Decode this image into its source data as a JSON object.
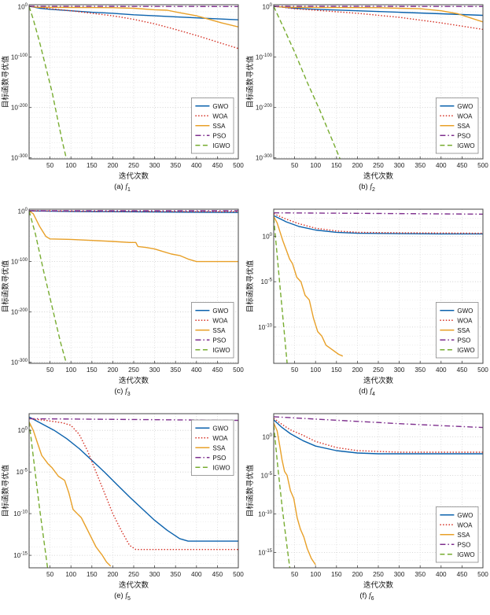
{
  "colors": {
    "GWO": "#0b62ad",
    "WOA": "#d63226",
    "SSA": "#e8a028",
    "PSO": "#7E2F8E",
    "IGWO": "#77AC30"
  },
  "chart_data": [
    {
      "id": "a",
      "type": "line",
      "caption": {
        "prefix": "(a)",
        "fname": "f",
        "fsub": "1"
      },
      "xlabel": "迭代次数",
      "ylabel": "目标函数寻优值",
      "xlim": [
        0,
        500
      ],
      "x_ticks": [
        50,
        100,
        150,
        200,
        250,
        300,
        350,
        400,
        450,
        500
      ],
      "y_scale": "log10",
      "ylim_exp": [
        4,
        -302
      ],
      "y_ticks_exp": [
        0,
        -100,
        -200,
        -300
      ],
      "y_minor_step_exp": 10,
      "legend_pos": "lower-right",
      "series": [
        {
          "name": "GWO",
          "color_key": "GWO",
          "dash": "solid",
          "x": [
            0,
            25,
            50,
            100,
            150,
            200,
            250,
            300,
            350,
            400,
            450,
            500
          ],
          "y_exp": [
            1,
            -3,
            -5,
            -8,
            -11,
            -13,
            -16,
            -18,
            -20,
            -22,
            -24,
            -26
          ]
        },
        {
          "name": "WOA",
          "color_key": "WOA",
          "dash": "dotted",
          "x": [
            0,
            50,
            100,
            150,
            200,
            250,
            300,
            350,
            400,
            450,
            500
          ],
          "y_exp": [
            1,
            -4,
            -8,
            -13,
            -18,
            -25,
            -34,
            -45,
            -57,
            -70,
            -83
          ]
        },
        {
          "name": "SSA",
          "color_key": "SSA",
          "dash": "solid",
          "x": [
            0,
            20,
            100,
            200,
            250,
            300,
            330,
            360,
            400,
            430,
            460,
            500
          ],
          "y_exp": [
            0.5,
            -1,
            -1.5,
            -2,
            -3,
            -6,
            -7,
            -12,
            -18,
            -25,
            -32,
            -40
          ]
        },
        {
          "name": "PSO",
          "color_key": "PSO",
          "dash": "dashdot",
          "x": [
            0,
            500
          ],
          "y_exp": [
            0.8,
            0.4
          ]
        },
        {
          "name": "IGWO",
          "color_key": "IGWO",
          "dash": "dashed",
          "x": [
            0,
            10,
            25,
            40,
            55,
            70,
            80,
            90
          ],
          "y_exp": [
            0.5,
            -25,
            -70,
            -120,
            -170,
            -230,
            -270,
            -305
          ]
        }
      ]
    },
    {
      "id": "b",
      "type": "line",
      "caption": {
        "prefix": "(b)",
        "fname": "f",
        "fsub": "2"
      },
      "xlabel": "迭代次数",
      "ylabel": "目标函数寻优值",
      "xlim": [
        0,
        500
      ],
      "x_ticks": [
        50,
        100,
        150,
        200,
        250,
        300,
        350,
        400,
        450,
        500
      ],
      "y_scale": "log10",
      "ylim_exp": [
        4,
        -302
      ],
      "y_ticks_exp": [
        0,
        -100,
        -200,
        -300
      ],
      "y_minor_step_exp": 10,
      "legend_pos": "lower-right",
      "series": [
        {
          "name": "GWO",
          "color_key": "GWO",
          "dash": "solid",
          "x": [
            0,
            50,
            100,
            200,
            300,
            400,
            500
          ],
          "y_exp": [
            1,
            -3,
            -5,
            -8,
            -11,
            -14,
            -17
          ]
        },
        {
          "name": "WOA",
          "color_key": "WOA",
          "dash": "dotted",
          "x": [
            0,
            50,
            100,
            200,
            300,
            400,
            500
          ],
          "y_exp": [
            1,
            -4,
            -7,
            -13,
            -21,
            -32,
            -45
          ]
        },
        {
          "name": "SSA",
          "color_key": "SSA",
          "dash": "solid",
          "x": [
            0,
            30,
            250,
            300,
            350,
            400,
            440,
            470,
            500
          ],
          "y_exp": [
            0.5,
            -1,
            -2,
            -3,
            -4,
            -8,
            -14,
            -22,
            -30
          ]
        },
        {
          "name": "PSO",
          "color_key": "PSO",
          "dash": "dashdot",
          "x": [
            0,
            500
          ],
          "y_exp": [
            0.8,
            0.5
          ]
        },
        {
          "name": "IGWO",
          "color_key": "IGWO",
          "dash": "dashed",
          "x": [
            0,
            20,
            50,
            80,
            110,
            140,
            160
          ],
          "y_exp": [
            0.5,
            -35,
            -90,
            -150,
            -205,
            -265,
            -305
          ]
        }
      ]
    },
    {
      "id": "c",
      "type": "line",
      "caption": {
        "prefix": "(c)",
        "fname": "f",
        "fsub": "3"
      },
      "xlabel": "迭代次数",
      "ylabel": "目标函数寻优值",
      "xlim": [
        0,
        500
      ],
      "x_ticks": [
        50,
        100,
        150,
        200,
        250,
        300,
        350,
        400,
        450,
        500
      ],
      "y_scale": "log10",
      "ylim_exp": [
        4,
        -302
      ],
      "y_ticks_exp": [
        0,
        -100,
        -200,
        -300
      ],
      "y_minor_step_exp": 10,
      "legend_pos": "lower-right",
      "series": [
        {
          "name": "GWO",
          "color_key": "GWO",
          "dash": "solid",
          "x": [
            0,
            100,
            300,
            500
          ],
          "y_exp": [
            0.5,
            -0.5,
            -1.5,
            -2.5
          ]
        },
        {
          "name": "WOA",
          "color_key": "WOA",
          "dash": "dotted",
          "x": [
            0,
            100,
            300,
            500
          ],
          "y_exp": [
            1,
            0,
            -0.5,
            -1
          ]
        },
        {
          "name": "SSA",
          "color_key": "SSA",
          "dash": "solid",
          "x": [
            0,
            10,
            25,
            40,
            50,
            100,
            150,
            200,
            240,
            255,
            260,
            280,
            300,
            320,
            340,
            360,
            380,
            400,
            500
          ],
          "y_exp": [
            0.5,
            -5,
            -30,
            -50,
            -55,
            -56,
            -58,
            -60,
            -62,
            -62,
            -70,
            -72,
            -75,
            -80,
            -85,
            -88,
            -95,
            -100,
            -100
          ]
        },
        {
          "name": "PSO",
          "color_key": "PSO",
          "dash": "dashdot",
          "x": [
            0,
            500
          ],
          "y_exp": [
            0.8,
            0.8
          ]
        },
        {
          "name": "IGWO",
          "color_key": "IGWO",
          "dash": "dashed",
          "x": [
            0,
            15,
            35,
            55,
            75,
            90
          ],
          "y_exp": [
            0.5,
            -45,
            -120,
            -190,
            -260,
            -305
          ]
        }
      ]
    },
    {
      "id": "d",
      "type": "line",
      "caption": {
        "prefix": "(d)",
        "fname": "f",
        "fsub": "4"
      },
      "xlabel": "迭代次数",
      "ylabel": "目标函数寻优值",
      "xlim": [
        0,
        500
      ],
      "x_ticks": [
        50,
        100,
        150,
        200,
        250,
        300,
        350,
        400,
        450,
        500
      ],
      "y_scale": "log10",
      "ylim_exp": [
        3,
        -14
      ],
      "y_ticks_exp": [
        0,
        -5,
        -10
      ],
      "y_minor_step_exp": 1,
      "legend_pos": "lower-right",
      "series": [
        {
          "name": "GWO",
          "color_key": "GWO",
          "dash": "solid",
          "x": [
            0,
            30,
            60,
            100,
            150,
            200,
            300,
            400,
            500
          ],
          "y_exp": [
            2.3,
            1.6,
            1.1,
            0.7,
            0.45,
            0.35,
            0.3,
            0.28,
            0.28
          ]
        },
        {
          "name": "WOA",
          "color_key": "WOA",
          "dash": "dotted",
          "x": [
            0,
            30,
            60,
            100,
            150,
            200,
            300,
            400,
            500
          ],
          "y_exp": [
            2.5,
            1.9,
            1.4,
            0.9,
            0.6,
            0.45,
            0.4,
            0.37,
            0.35
          ]
        },
        {
          "name": "SSA",
          "color_key": "SSA",
          "dash": "solid",
          "x": [
            0,
            8,
            15,
            22,
            30,
            38,
            45,
            55,
            65,
            75,
            85,
            95,
            105,
            115,
            125,
            140,
            155,
            165
          ],
          "y_exp": [
            2.2,
            1.5,
            0.5,
            -0.5,
            -1.5,
            -2.5,
            -3,
            -4.5,
            -5,
            -6.5,
            -7,
            -9,
            -10.5,
            -11,
            -12,
            -12.5,
            -13,
            -13.2
          ]
        },
        {
          "name": "PSO",
          "color_key": "PSO",
          "dash": "dashdot",
          "x": [
            0,
            500
          ],
          "y_exp": [
            2.6,
            2.45
          ]
        },
        {
          "name": "IGWO",
          "color_key": "IGWO",
          "dash": "dashed",
          "x": [
            0,
            8,
            16,
            24,
            33
          ],
          "y_exp": [
            2,
            -2,
            -6,
            -10,
            -14.5
          ]
        }
      ]
    },
    {
      "id": "e",
      "type": "line",
      "caption": {
        "prefix": "(e)",
        "fname": "f",
        "fsub": "5"
      },
      "xlabel": "迭代次数",
      "ylabel": "目标函数寻优值",
      "xlim": [
        0,
        500
      ],
      "x_ticks": [
        50,
        100,
        150,
        200,
        250,
        300,
        350,
        400,
        450,
        500
      ],
      "y_scale": "log10",
      "ylim_exp": [
        2,
        -16.5
      ],
      "y_ticks_exp": [
        0,
        -5,
        -10,
        -15
      ],
      "y_minor_step_exp": 1,
      "legend_pos": "upper-right",
      "series": [
        {
          "name": "GWO",
          "color_key": "GWO",
          "dash": "solid",
          "x": [
            0,
            30,
            60,
            90,
            120,
            150,
            180,
            210,
            240,
            270,
            300,
            330,
            360,
            380,
            500
          ],
          "y_exp": [
            1.6,
            0.8,
            0,
            -1,
            -2.2,
            -3.6,
            -5,
            -6.5,
            -8,
            -9.4,
            -10.8,
            -12,
            -13,
            -13.3,
            -13.3
          ]
        },
        {
          "name": "WOA",
          "color_key": "WOA",
          "dash": "dotted",
          "x": [
            0,
            40,
            80,
            100,
            120,
            140,
            160,
            180,
            200,
            220,
            240,
            255,
            500
          ],
          "y_exp": [
            1.4,
            1.2,
            0.9,
            0.6,
            -0.5,
            -2.5,
            -5,
            -7.5,
            -10,
            -12,
            -13.8,
            -14.3,
            -14.3
          ]
        },
        {
          "name": "SSA",
          "color_key": "SSA",
          "dash": "solid",
          "x": [
            0,
            10,
            20,
            30,
            45,
            55,
            70,
            85,
            95,
            105,
            115,
            125,
            135,
            150,
            160,
            175,
            185,
            195
          ],
          "y_exp": [
            1,
            0,
            -1.5,
            -3,
            -4,
            -4.5,
            -5.5,
            -6,
            -7.5,
            -9.5,
            -10,
            -10.5,
            -11.5,
            -13,
            -14,
            -15,
            -15.8,
            -16.3
          ]
        },
        {
          "name": "PSO",
          "color_key": "PSO",
          "dash": "dashdot",
          "x": [
            0,
            500
          ],
          "y_exp": [
            1.4,
            1.2
          ]
        },
        {
          "name": "IGWO",
          "color_key": "IGWO",
          "dash": "dashed",
          "x": [
            0,
            12,
            24,
            36,
            45
          ],
          "y_exp": [
            1,
            -4,
            -9,
            -13.5,
            -16.8
          ]
        }
      ]
    },
    {
      "id": "f",
      "type": "line",
      "caption": {
        "prefix": "(f)",
        "fname": "f",
        "fsub": "6"
      },
      "xlabel": "迭代次数",
      "ylabel": "目标函数寻优值",
      "xlim": [
        0,
        500
      ],
      "x_ticks": [
        50,
        100,
        150,
        200,
        250,
        300,
        350,
        400,
        450,
        500
      ],
      "y_scale": "log10",
      "ylim_exp": [
        3,
        -17
      ],
      "y_ticks_exp": [
        0,
        -5,
        -10,
        -15
      ],
      "y_minor_step_exp": 1,
      "legend_pos": "lower-right",
      "series": [
        {
          "name": "GWO",
          "color_key": "GWO",
          "dash": "solid",
          "x": [
            0,
            20,
            40,
            70,
            100,
            150,
            200,
            250,
            500
          ],
          "y_exp": [
            2.2,
            1.2,
            0.4,
            -0.5,
            -1.2,
            -1.8,
            -2.1,
            -2.2,
            -2.2
          ]
        },
        {
          "name": "WOA",
          "color_key": "WOA",
          "dash": "dotted",
          "x": [
            0,
            20,
            40,
            70,
            100,
            150,
            200,
            300,
            500
          ],
          "y_exp": [
            2.4,
            1.6,
            0.9,
            0.2,
            -0.6,
            -1.4,
            -1.8,
            -2.0,
            -2.0
          ]
        },
        {
          "name": "SSA",
          "color_key": "SSA",
          "dash": "solid",
          "x": [
            0,
            8,
            14,
            20,
            26,
            32,
            40,
            48,
            56,
            64,
            72,
            80,
            90,
            100
          ],
          "y_exp": [
            1.8,
            0.8,
            -1,
            -3,
            -4.5,
            -5,
            -7,
            -8,
            -10.5,
            -12,
            -13,
            -14.5,
            -15.8,
            -16.6
          ]
        },
        {
          "name": "PSO",
          "color_key": "PSO",
          "dash": "dashdot",
          "x": [
            0,
            100,
            200,
            300,
            400,
            500
          ],
          "y_exp": [
            2.6,
            2.3,
            2.0,
            1.7,
            1.45,
            1.2
          ]
        },
        {
          "name": "IGWO",
          "color_key": "IGWO",
          "dash": "dashed",
          "x": [
            0,
            10,
            20,
            30,
            39
          ],
          "y_exp": [
            1.5,
            -4,
            -9,
            -13.5,
            -17.2
          ]
        }
      ]
    }
  ]
}
